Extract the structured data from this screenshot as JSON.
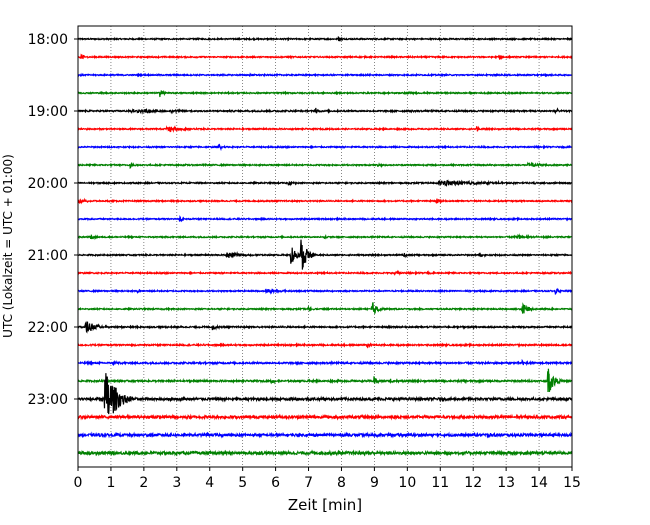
{
  "chart_data": {
    "type": "line",
    "title": "",
    "xlabel": "Zeit  [min]",
    "ylabel": "UTC (Lokalzeit = UTC + 01:00)",
    "xlim": [
      0,
      15
    ],
    "x_ticks": [
      "0",
      "1",
      "2",
      "3",
      "4",
      "5",
      "6",
      "7",
      "8",
      "9",
      "10",
      "11",
      "12",
      "13",
      "14",
      "15"
    ],
    "y_tick_labels": [
      "18:00",
      "19:00",
      "20:00",
      "21:00",
      "22:00",
      "23:00"
    ],
    "y_tick_trace_index": [
      0,
      4,
      8,
      12,
      16,
      20
    ],
    "grid": "vertical dotted at each minute",
    "colors": [
      "#000000",
      "#ff0000",
      "#0000ff",
      "#008000"
    ],
    "traces": [
      {
        "start": "18:00",
        "noise": 0.6,
        "events": [
          [
            7.9,
            4,
            0.05
          ]
        ]
      },
      {
        "start": "18:15",
        "noise": 0.6,
        "events": [
          [
            0.1,
            3,
            0.05
          ],
          [
            12.8,
            4,
            0.05
          ]
        ]
      },
      {
        "start": "18:30",
        "noise": 0.6,
        "events": [
          [
            5.2,
            1.5,
            0.05
          ]
        ]
      },
      {
        "start": "18:45",
        "noise": 0.6,
        "events": [
          [
            2.5,
            4,
            0.05
          ],
          [
            10.0,
            1.5,
            0.05
          ]
        ]
      },
      {
        "start": "19:00",
        "noise": 0.7,
        "events": [
          [
            2.0,
            1.5,
            1.0
          ],
          [
            7.2,
            4,
            0.05
          ],
          [
            14.5,
            3,
            0.05
          ]
        ]
      },
      {
        "start": "19:15",
        "noise": 0.6,
        "events": [
          [
            2.8,
            2.5,
            0.3
          ],
          [
            12.1,
            3,
            0.05
          ]
        ]
      },
      {
        "start": "19:30",
        "noise": 0.6,
        "events": [
          [
            4.3,
            3,
            0.05
          ]
        ]
      },
      {
        "start": "19:45",
        "noise": 0.6,
        "events": [
          [
            1.6,
            3.5,
            0.05
          ],
          [
            9.1,
            2,
            0.05
          ],
          [
            13.8,
            1.5,
            0.4
          ]
        ]
      },
      {
        "start": "20:00",
        "noise": 0.6,
        "events": [
          [
            6.4,
            4,
            0.05
          ],
          [
            11.3,
            2.5,
            0.9
          ],
          [
            13.8,
            2,
            0.05
          ]
        ]
      },
      {
        "start": "20:15",
        "noise": 0.6,
        "events": [
          [
            0.1,
            1.5,
            0.2
          ],
          [
            10.9,
            3,
            0.05
          ]
        ]
      },
      {
        "start": "20:30",
        "noise": 0.6,
        "events": [
          [
            3.1,
            3,
            0.05
          ]
        ]
      },
      {
        "start": "20:45",
        "noise": 0.6,
        "events": [
          [
            0.4,
            3,
            0.05
          ],
          [
            7.5,
            2,
            0.05
          ],
          [
            13.4,
            1.5,
            0.4
          ]
        ]
      },
      {
        "start": "21:00",
        "noise": 0.6,
        "events": [
          [
            4.6,
            3,
            0.3
          ],
          [
            6.5,
            10,
            0.1
          ],
          [
            6.8,
            16,
            0.12
          ],
          [
            9.9,
            2,
            0.05
          ],
          [
            12.2,
            2,
            0.05
          ]
        ]
      },
      {
        "start": "21:15",
        "noise": 0.6,
        "events": [
          [
            9.6,
            3,
            0.05
          ],
          [
            10.6,
            2,
            0.05
          ]
        ]
      },
      {
        "start": "21:30",
        "noise": 0.6,
        "events": [
          [
            1.8,
            2,
            0.05
          ],
          [
            5.8,
            2,
            0.3
          ],
          [
            14.5,
            3,
            0.05
          ]
        ]
      },
      {
        "start": "21:45",
        "noise": 0.6,
        "events": [
          [
            7.0,
            2,
            0.05
          ],
          [
            8.95,
            7,
            0.1
          ],
          [
            13.5,
            7,
            0.1
          ]
        ]
      },
      {
        "start": "22:00",
        "noise": 0.7,
        "events": [
          [
            0.3,
            6,
            0.2
          ],
          [
            4.1,
            3,
            0.05
          ],
          [
            11.5,
            1.5,
            0.05
          ]
        ]
      },
      {
        "start": "22:15",
        "noise": 0.7,
        "events": [
          [
            8.8,
            3,
            0.05
          ]
        ]
      },
      {
        "start": "22:30",
        "noise": 0.8,
        "events": [
          [
            1.1,
            2,
            0.05
          ],
          [
            13.5,
            4,
            0.05
          ]
        ]
      },
      {
        "start": "22:45",
        "noise": 0.8,
        "events": [
          [
            5.9,
            2,
            0.05
          ],
          [
            9.0,
            5,
            0.05
          ],
          [
            9.5,
            3,
            0.05
          ],
          [
            14.3,
            14,
            0.12
          ]
        ]
      },
      {
        "start": "23:00",
        "noise": 1.2,
        "events": [
          [
            0.9,
            27,
            0.25
          ],
          [
            3.1,
            2,
            0.05
          ]
        ]
      },
      {
        "start": "23:15",
        "noise": 1.3,
        "events": [
          [
            7.8,
            3,
            0.05
          ]
        ]
      },
      {
        "start": "23:30",
        "noise": 1.3,
        "events": [
          [
            12.5,
            2,
            0.05
          ]
        ]
      },
      {
        "start": "23:45",
        "noise": 1.4,
        "events": []
      }
    ]
  }
}
